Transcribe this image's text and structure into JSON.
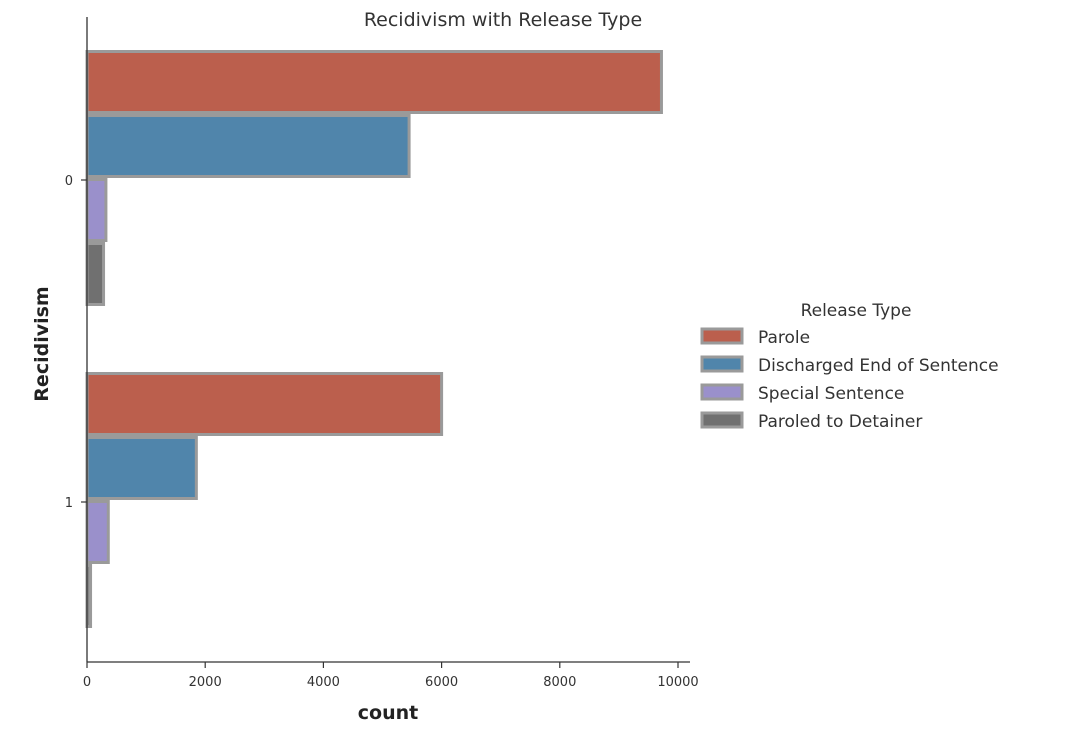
{
  "chart_data": {
    "type": "bar",
    "orientation": "horizontal",
    "title": "Recidivism with Release Type",
    "xlabel": "count",
    "ylabel": "Recidivism",
    "categories": [
      "0",
      "1"
    ],
    "xlim": [
      0,
      10300
    ],
    "xticks": [
      "0",
      "2000",
      "4000",
      "6000",
      "8000",
      "10000"
    ],
    "legend_title": "Release Type",
    "legend_position": "right",
    "grid": false,
    "series": [
      {
        "name": "Parole",
        "color": "#bb5f4d",
        "values": [
          9720,
          6000
        ]
      },
      {
        "name": "Discharged End of Sentence",
        "color": "#5085ab",
        "values": [
          5450,
          1850
        ]
      },
      {
        "name": "Special Sentence",
        "color": "#9a90cb",
        "values": [
          320,
          360
        ]
      },
      {
        "name": "Paroled to Detainer",
        "color": "#707070",
        "values": [
          280,
          60
        ]
      }
    ],
    "bar_edge_color": "#9a9a9a"
  }
}
